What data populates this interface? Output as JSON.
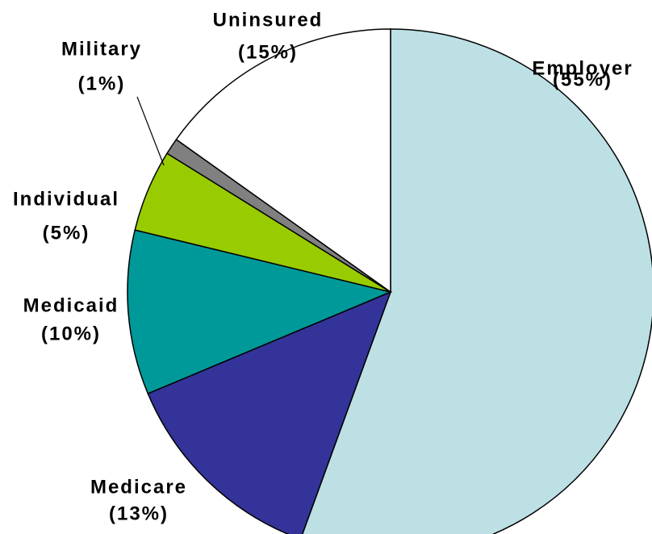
{
  "chart_data": {
    "type": "pie",
    "categories": [
      "Employer",
      "Medicare",
      "Medicaid",
      "Individual",
      "Military",
      "Uninsured"
    ],
    "values": [
      55,
      13,
      10,
      5,
      1,
      15
    ],
    "value_labels": [
      "(55%)",
      "(13%)",
      "(10%)",
      "(5%)",
      "(1%)",
      "(15%)"
    ],
    "colors": [
      "#bde0e4",
      "#333399",
      "#009999",
      "#99cc00",
      "#808080",
      "#ffffff"
    ]
  }
}
